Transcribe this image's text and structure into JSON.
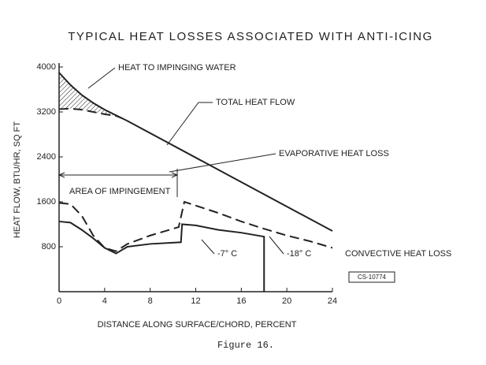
{
  "chart_data": {
    "type": "line",
    "title": "TYPICAL HEAT LOSSES ASSOCIATED WITH ANTI-ICING",
    "x_label": "DISTANCE ALONG SURFACE/CHORD, PERCENT",
    "y_label": "HEAT FLOW, BTU/HR, SQ FT",
    "xlim": [
      0,
      24
    ],
    "xticks": [
      0,
      4,
      8,
      12,
      16,
      20,
      24
    ],
    "ylim": [
      0,
      4000
    ],
    "yticks": [
      800,
      1600,
      2400,
      3200,
      4000
    ],
    "series": [
      {
        "name": "TOTAL HEAT FLOW",
        "color": "#222",
        "dash": false,
        "x": [
          0,
          1,
          2,
          3,
          4,
          5,
          6,
          24
        ],
        "values": [
          3900,
          3680,
          3500,
          3360,
          3240,
          3140,
          3040,
          1080
        ]
      },
      {
        "name": "EVAPORATIVE HEAT LOSS",
        "color": "#222",
        "dash": true,
        "x": [
          0,
          1,
          2,
          3,
          4,
          5,
          5.5
        ],
        "values": [
          3250,
          3260,
          3240,
          3200,
          3160,
          3130,
          3090
        ]
      },
      {
        "name": "-18° C",
        "color": "#222",
        "dash": true,
        "x": [
          0,
          1,
          2,
          3,
          4,
          5,
          6,
          8,
          10.5,
          11,
          14,
          16,
          18,
          20,
          22,
          24
        ],
        "values": [
          1580,
          1560,
          1350,
          1000,
          780,
          720,
          850,
          1000,
          1150,
          1600,
          1400,
          1250,
          1120,
          1000,
          900,
          780
        ]
      },
      {
        "name": "-7° C",
        "color": "#222",
        "dash": false,
        "x": [
          0,
          1,
          2,
          3,
          4,
          5,
          6,
          8,
          10.7,
          10.8,
          12,
          14,
          16,
          18,
          18
        ],
        "values": [
          1250,
          1230,
          1100,
          950,
          780,
          680,
          800,
          850,
          880,
          1200,
          1180,
          1100,
          1050,
          980,
          0
        ]
      }
    ],
    "annotations": [
      "HEAT TO IMPINGING WATER",
      "AREA OF IMPINGEMENT",
      "CONVECTIVE HEAT LOSS",
      "CS-10774"
    ],
    "caption": "Figure 16."
  }
}
